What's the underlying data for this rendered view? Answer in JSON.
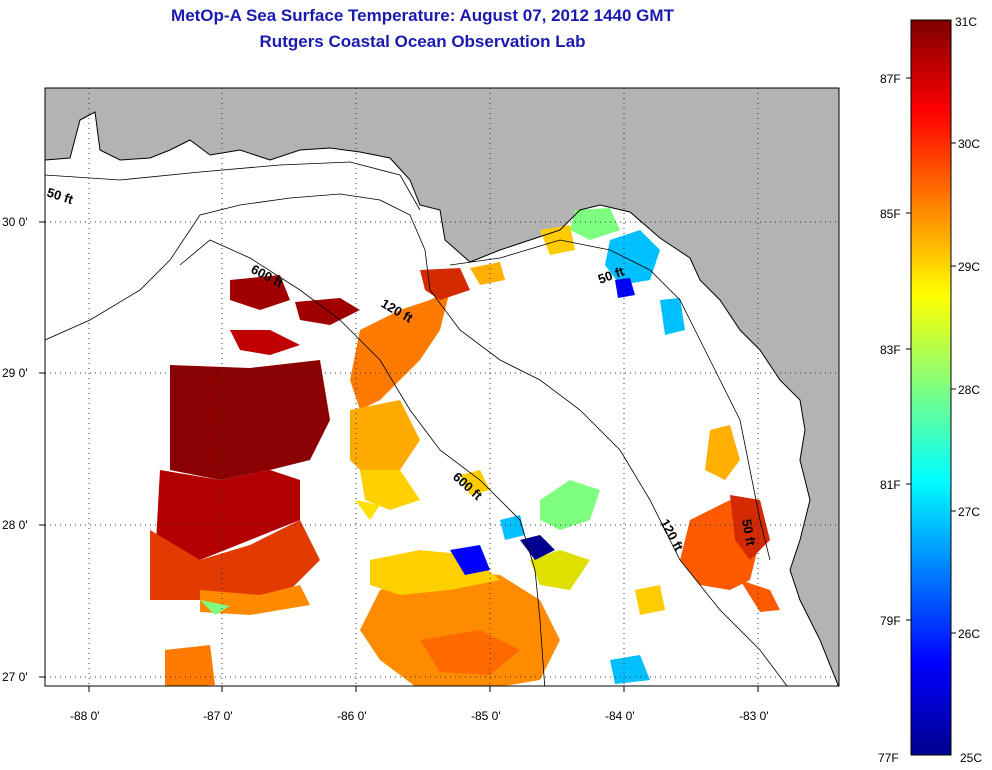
{
  "title": {
    "line1": "MetOp-A Sea Surface Temperature:  August 07, 2012 1440 GMT",
    "line2": "Rutgers Coastal Ocean Observation Lab"
  },
  "axes": {
    "x_ticks": [
      "-88 0'",
      "-87 0'",
      "-86 0'",
      "-85 0'",
      "-84 0'",
      "-83 0'"
    ],
    "y_ticks": [
      "30 0'",
      "29 0'",
      "28 0'",
      "27 0'"
    ]
  },
  "contour_labels": [
    {
      "text": "50 ft"
    },
    {
      "text": "600 ft"
    },
    {
      "text": "120 ft"
    },
    {
      "text": "50 ft"
    },
    {
      "text": "600 ft"
    },
    {
      "text": "120 ft"
    },
    {
      "text": "50 ft"
    }
  ],
  "colorbar": {
    "celsius": [
      "31C",
      "30C",
      "29C",
      "28C",
      "27C",
      "26C",
      "25C"
    ],
    "fahrenheit": [
      "87F",
      "85F",
      "83F",
      "81F",
      "79F",
      "77F"
    ]
  },
  "colors": {
    "land": "#b3b3b3",
    "ocean": "#ffffff",
    "title": "#1a1ab0",
    "hot": "#8b0000",
    "cold": "#00008f"
  }
}
